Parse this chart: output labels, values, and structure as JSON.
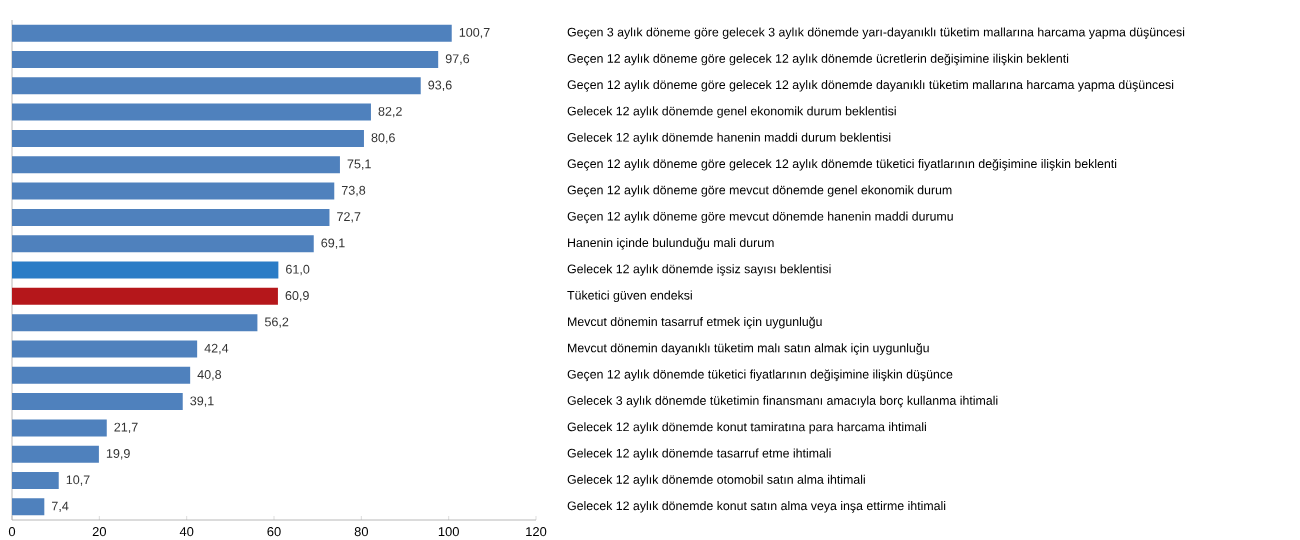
{
  "chart_data": {
    "type": "bar",
    "orientation": "horizontal",
    "categories": [
      "Geçen 3 aylık döneme göre gelecek 3 aylık dönemde yarı-dayanıklı tüketim mallarına harcama yapma düşüncesi",
      "Geçen 12 aylık döneme göre gelecek 12 aylık dönemde ücretlerin değişimine ilişkin beklenti",
      "Geçen 12 aylık döneme göre gelecek 12 aylık dönemde  dayanıklı tüketim mallarına harcama yapma düşüncesi",
      "Gelecek 12 aylık dönemde genel ekonomik durum beklentisi",
      "Gelecek 12 aylık dönemde hanenin maddi durum beklentisi",
      "Geçen 12 aylık döneme göre gelecek 12 aylık dönemde tüketici fiyatlarının değişimine ilişkin beklenti",
      "Geçen 12 aylık döneme göre mevcut dönemde genel ekonomik durum",
      "Geçen 12 aylık döneme göre mevcut dönemde hanenin maddi durumu",
      "Hanenin içinde bulunduğu mali durum",
      "Gelecek 12 aylık dönemde işsiz sayısı  beklentisi",
      "Tüketici güven endeksi",
      "Mevcut dönemin tasarruf etmek için uygunluğu",
      "Mevcut dönemin dayanıklı tüketim malı satın almak için uygunluğu",
      "Geçen 12 aylık dönemde tüketici fiyatlarının değişimine ilişkin düşünce",
      "Gelecek 3 aylık dönemde tüketimin finansmanı amacıyla borç kullanma ihtimali",
      "Gelecek 12 aylık dönemde konut tamiratına para harcama ihtimali",
      "Gelecek 12 aylık dönemde tasarruf etme ihtimali",
      "Gelecek 12 aylık dönemde otomobil satın alma ihtimali",
      "Gelecek 12 aylık dönemde konut satın alma veya inşa ettirme ihtimali"
    ],
    "values": [
      100.7,
      97.6,
      93.6,
      82.2,
      80.6,
      75.1,
      73.8,
      72.7,
      69.1,
      61.0,
      60.9,
      56.2,
      42.4,
      40.8,
      39.1,
      21.7,
      19.9,
      10.7,
      7.4
    ],
    "value_labels": [
      "100,7",
      "97,6",
      "93,6",
      "82,2",
      "80,6",
      "75,1",
      "73,8",
      "72,7",
      "69,1",
      "61,0",
      "60,9",
      "56,2",
      "42,4",
      "40,8",
      "39,1",
      "21,7",
      "19,9",
      "10,7",
      "7,4"
    ],
    "colors": [
      "#4f81bd",
      "#4f81bd",
      "#4f81bd",
      "#4f81bd",
      "#4f81bd",
      "#4f81bd",
      "#4f81bd",
      "#4f81bd",
      "#4f81bd",
      "#2a7cc6",
      "#b5171b",
      "#4f81bd",
      "#4f81bd",
      "#4f81bd",
      "#4f81bd",
      "#4f81bd",
      "#4f81bd",
      "#4f81bd",
      "#4f81bd"
    ],
    "xlim": [
      0,
      120
    ],
    "xticks": [
      0,
      20,
      40,
      60,
      80,
      100,
      120
    ]
  }
}
